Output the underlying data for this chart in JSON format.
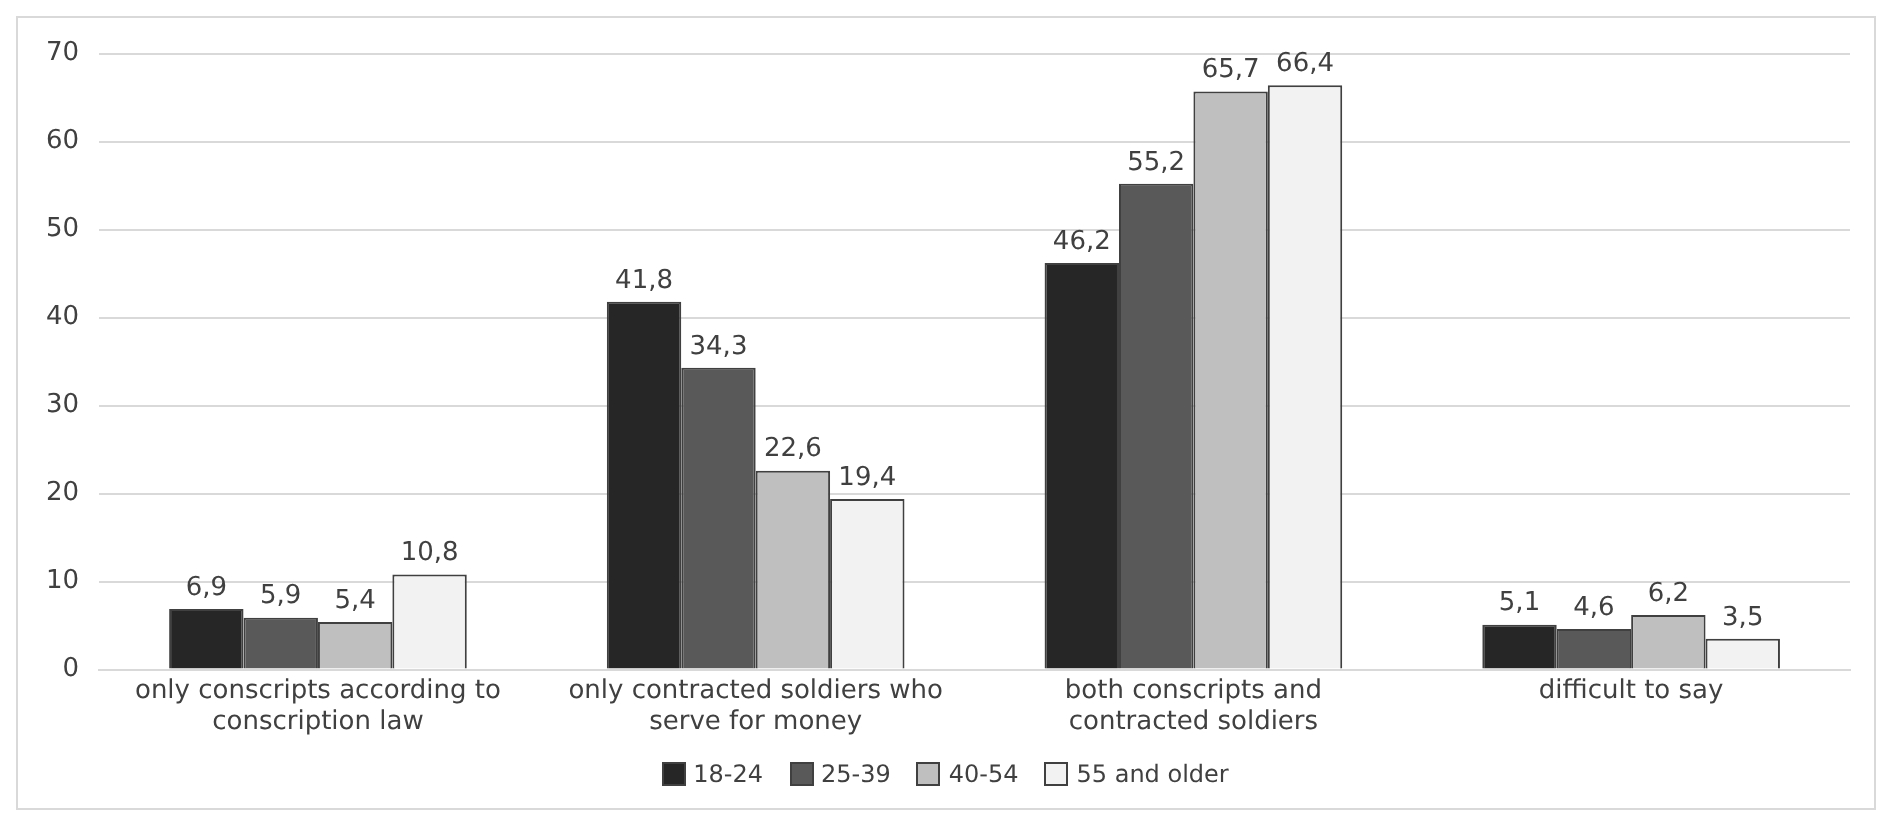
{
  "chart_data": {
    "type": "bar",
    "categories": [
      "only conscripts according to conscription law",
      "only contracted soldiers who serve for money",
      "both conscripts and contracted soldiers",
      "difficult to say"
    ],
    "series": [
      {
        "name": "18-24",
        "color": "#262626",
        "values": [
          6.9,
          41.8,
          46.2,
          5.1
        ],
        "value_labels": [
          "6,9",
          "41,8",
          "46,2",
          "5,1"
        ]
      },
      {
        "name": "25-39",
        "color": "#595959",
        "values": [
          5.9,
          34.3,
          55.2,
          4.6
        ],
        "value_labels": [
          "5,9",
          "34,3",
          "55,2",
          "4,6"
        ]
      },
      {
        "name": "40-54",
        "color": "#bfbfbf",
        "values": [
          5.4,
          22.6,
          65.7,
          6.2
        ],
        "value_labels": [
          "5,4",
          "22,6",
          "65,7",
          "6,2"
        ]
      },
      {
        "name": "55 and older",
        "color": "#f2f2f2",
        "values": [
          10.8,
          19.4,
          66.4,
          3.5
        ],
        "value_labels": [
          "10,8",
          "19,4",
          "66,4",
          "3,5"
        ]
      }
    ],
    "ylim": [
      0,
      70
    ],
    "yticks": [
      0,
      10,
      20,
      30,
      40,
      50,
      60,
      70
    ],
    "grid": "y",
    "legend": "bottom"
  }
}
